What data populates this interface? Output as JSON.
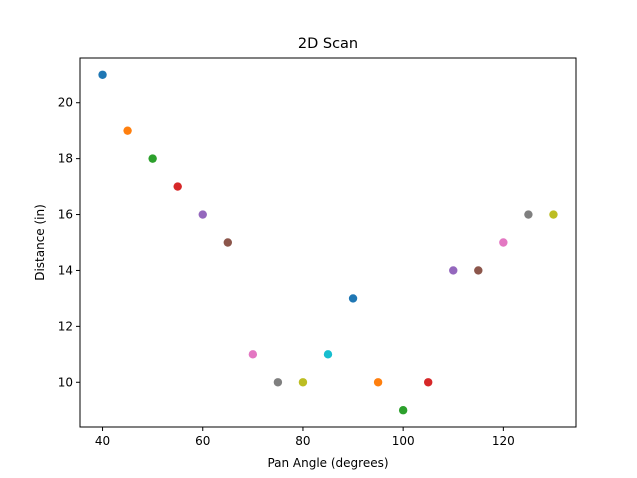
{
  "chart_data": {
    "type": "scatter",
    "title": "2D Scan",
    "xlabel": "Pan Angle (degrees)",
    "ylabel": "Distance (in)",
    "xlim": [
      35.5,
      134.5
    ],
    "ylim": [
      8.4,
      21.6
    ],
    "xticks": [
      40,
      60,
      80,
      100,
      120
    ],
    "yticks": [
      10,
      12,
      14,
      16,
      18,
      20
    ],
    "grid": false,
    "legend": "none",
    "points": [
      {
        "x": 40,
        "y": 21,
        "color": "#1f77b4"
      },
      {
        "x": 45,
        "y": 19,
        "color": "#ff7f0e"
      },
      {
        "x": 50,
        "y": 18,
        "color": "#2ca02c"
      },
      {
        "x": 55,
        "y": 17,
        "color": "#d62728"
      },
      {
        "x": 60,
        "y": 16,
        "color": "#9467bd"
      },
      {
        "x": 65,
        "y": 15,
        "color": "#8c564b"
      },
      {
        "x": 70,
        "y": 11,
        "color": "#e377c2"
      },
      {
        "x": 75,
        "y": 10,
        "color": "#7f7f7f"
      },
      {
        "x": 80,
        "y": 10,
        "color": "#bcbd22"
      },
      {
        "x": 85,
        "y": 11,
        "color": "#17becf"
      },
      {
        "x": 90,
        "y": 13,
        "color": "#1f77b4"
      },
      {
        "x": 95,
        "y": 10,
        "color": "#ff7f0e"
      },
      {
        "x": 100,
        "y": 9,
        "color": "#2ca02c"
      },
      {
        "x": 105,
        "y": 10,
        "color": "#d62728"
      },
      {
        "x": 110,
        "y": 14,
        "color": "#9467bd"
      },
      {
        "x": 115,
        "y": 14,
        "color": "#8c564b"
      },
      {
        "x": 120,
        "y": 15,
        "color": "#e377c2"
      },
      {
        "x": 125,
        "y": 16,
        "color": "#7f7f7f"
      },
      {
        "x": 130,
        "y": 16,
        "color": "#bcbd22"
      }
    ]
  }
}
